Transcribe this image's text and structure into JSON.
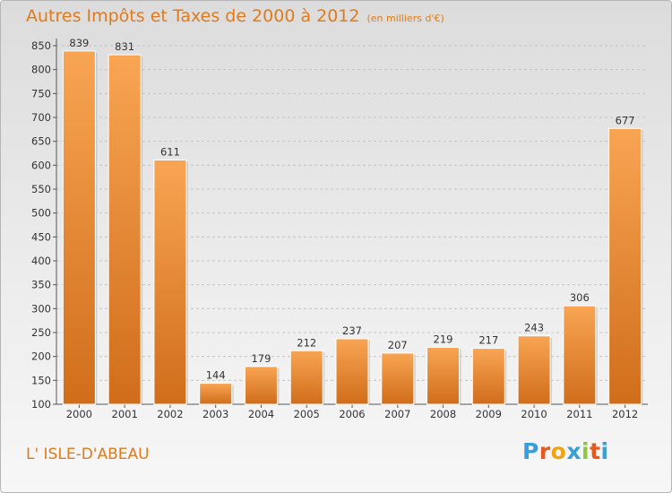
{
  "title": "Autres Impôts et Taxes de 2000 à 2012",
  "subtitle": "(en milliers d'€)",
  "commune": "L' ISLE-D'ABEAU",
  "logo": {
    "letters": [
      "P",
      "r",
      "o",
      "x",
      "i",
      "t",
      "i"
    ],
    "colors": [
      "#3a9fd8",
      "#e8581c",
      "#f0a30a",
      "#3a9fd8",
      "#8dc63f",
      "#e8581c",
      "#3a9fd8"
    ]
  },
  "colors": {
    "accent": "#e07a1a",
    "bar_light": "#f8a553",
    "bar_dark": "#d06d1a"
  },
  "chart_data": {
    "type": "bar",
    "title": "Autres Impôts et Taxes de 2000 à 2012",
    "subtitle": "(en milliers d'€)",
    "categories": [
      "2000",
      "2001",
      "2002",
      "2003",
      "2004",
      "2005",
      "2006",
      "2007",
      "2008",
      "2009",
      "2010",
      "2011",
      "2012"
    ],
    "values": [
      839,
      831,
      611,
      144,
      179,
      212,
      237,
      207,
      219,
      217,
      243,
      306,
      677
    ],
    "ylim": [
      100,
      850
    ],
    "yticks": [
      "100",
      "150",
      "200",
      "250",
      "300",
      "350",
      "400",
      "450",
      "500",
      "550",
      "600",
      "650",
      "700",
      "750",
      "800",
      "850"
    ],
    "grid": true
  }
}
